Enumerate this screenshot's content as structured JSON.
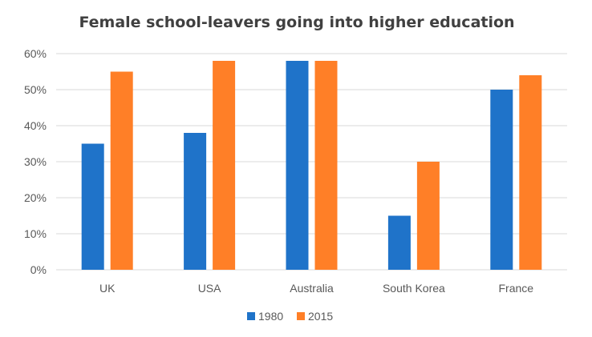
{
  "chart_data": {
    "type": "bar",
    "title": "Female school-leavers going into higher education",
    "xlabel": "",
    "ylabel": "",
    "categories": [
      "UK",
      "USA",
      "Australia",
      "South Korea",
      "France"
    ],
    "series": [
      {
        "name": "1980",
        "color": "#1f73c9",
        "values": [
          35,
          38,
          58,
          15,
          50
        ]
      },
      {
        "name": "2015",
        "color": "#ff7f27",
        "values": [
          55,
          58,
          58,
          30,
          54
        ]
      }
    ],
    "ylim": [
      0,
      60
    ],
    "yticks": [
      0,
      10,
      20,
      30,
      40,
      50,
      60
    ],
    "ytick_labels": [
      "0%",
      "10%",
      "20%",
      "30%",
      "40%",
      "50%",
      "60%"
    ],
    "grid": true,
    "legend_position": "bottom"
  }
}
